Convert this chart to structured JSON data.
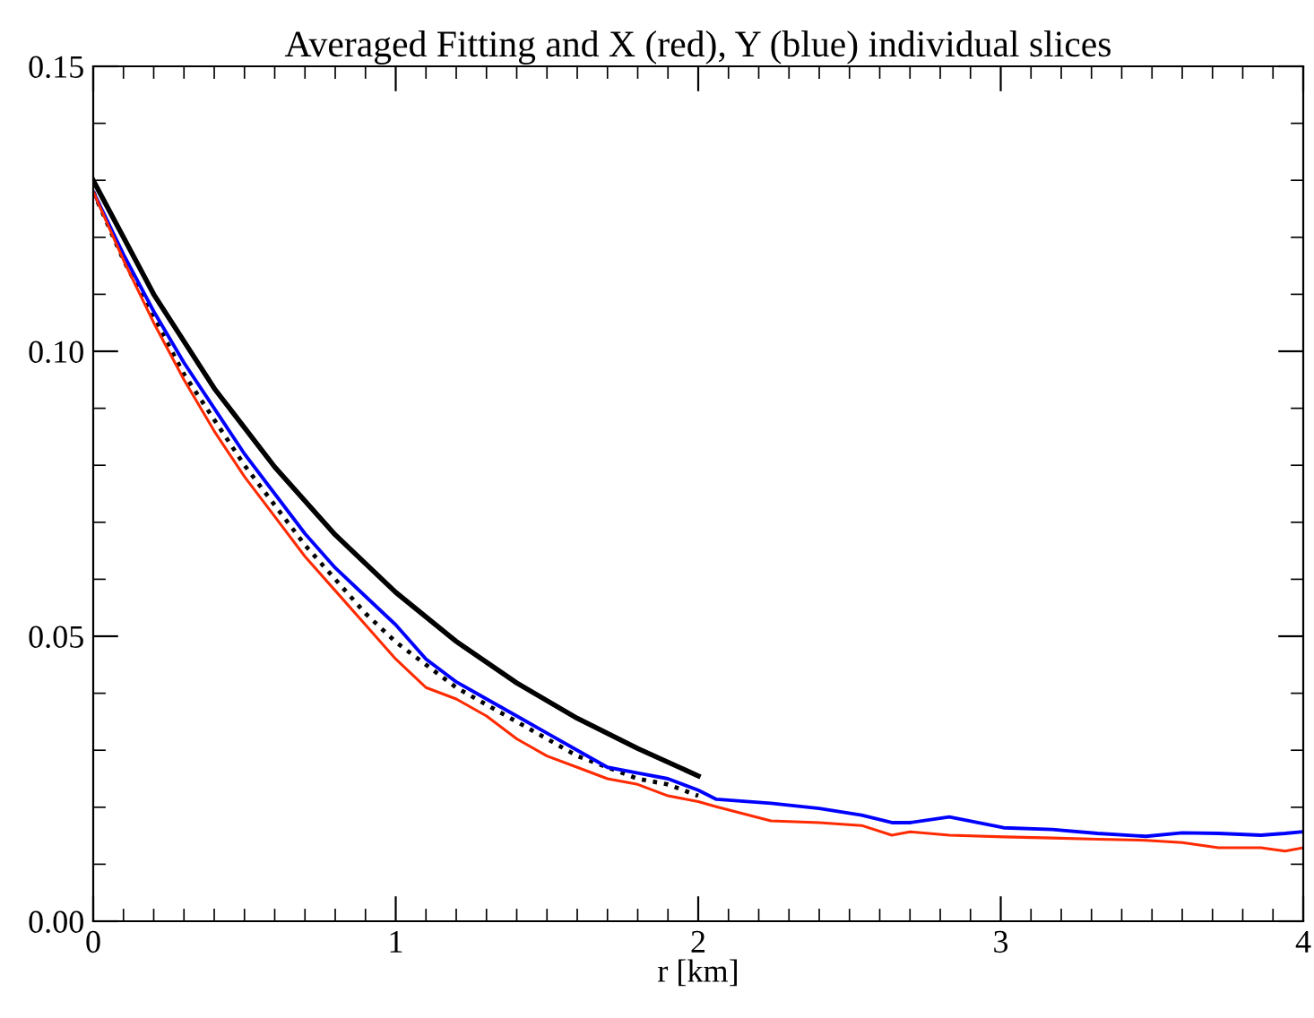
{
  "chart_data": {
    "type": "line",
    "title": "Averaged Fitting and X (red), Y (blue) individual slices",
    "xlabel": "r [km]",
    "xlim": [
      0,
      4
    ],
    "xticks": [
      0,
      1,
      2,
      3,
      4
    ],
    "ylim": [
      0,
      0.15
    ],
    "yticks": [
      {
        "value": 0,
        "label": "0.00"
      },
      {
        "value": 0.05,
        "label": "0.05"
      },
      {
        "value": 0.1,
        "label": "0.10"
      },
      {
        "value": 0.15,
        "label": "0.15"
      }
    ],
    "grid": false,
    "legend": false,
    "marker": "none",
    "series": [
      {
        "color": "#000000",
        "line_style": "solid",
        "x": [
          0,
          0.2,
          0.4,
          0.6,
          0.8,
          1.0,
          1.2,
          1.4,
          1.6,
          1.8,
          2.0
        ],
        "values": [
          0.13,
          0.11,
          0.0935,
          0.0797,
          0.0678,
          0.0577,
          0.0491,
          0.0418,
          0.0356,
          0.0303,
          0.0255
        ]
      },
      {
        "color": "#000000",
        "line_style": "dotted",
        "x": [
          0,
          0.1,
          0.2,
          0.3,
          0.4,
          0.5,
          0.6,
          0.7,
          0.8,
          0.9,
          1.0,
          1.1,
          1.2,
          1.3,
          1.4,
          1.5,
          1.6,
          1.7,
          1.8,
          1.9,
          2.0
        ],
        "values": [
          0.128,
          0.116,
          0.106,
          0.096,
          0.088,
          0.08,
          0.073,
          0.066,
          0.06,
          0.054,
          0.049,
          0.045,
          0.041,
          0.038,
          0.035,
          0.032,
          0.029,
          0.027,
          0.025,
          0.024,
          0.022
        ]
      },
      {
        "color": "#0000ff",
        "line_style": "solid",
        "x": [
          0,
          0.1,
          0.2,
          0.3,
          0.4,
          0.5,
          0.6,
          0.7,
          0.8,
          0.9,
          1.0,
          1.1,
          1.2,
          1.3,
          1.4,
          1.5,
          1.6,
          1.7,
          1.8,
          1.9,
          2.0,
          2.06,
          2.24,
          2.4,
          2.54,
          2.64,
          2.7,
          2.83,
          3.01,
          3.17,
          3.32,
          3.48,
          3.6,
          3.72,
          3.86,
          3.94,
          4.0
        ],
        "values": [
          0.128,
          0.117,
          0.107,
          0.098,
          0.09,
          0.082,
          0.075,
          0.068,
          0.062,
          0.057,
          0.052,
          0.046,
          0.042,
          0.039,
          0.036,
          0.033,
          0.03,
          0.027,
          0.026,
          0.025,
          0.023,
          0.0214,
          0.0207,
          0.0198,
          0.0186,
          0.0173,
          0.0173,
          0.0183,
          0.0164,
          0.0161,
          0.0154,
          0.0149,
          0.0155,
          0.0154,
          0.0151,
          0.0154,
          0.0157
        ]
      },
      {
        "color": "#ff2a00",
        "line_style": "solid",
        "x": [
          0,
          0.1,
          0.2,
          0.3,
          0.4,
          0.5,
          0.6,
          0.7,
          0.8,
          0.9,
          1.0,
          1.1,
          1.2,
          1.3,
          1.4,
          1.5,
          1.6,
          1.7,
          1.8,
          1.9,
          2.0,
          2.06,
          2.24,
          2.4,
          2.54,
          2.64,
          2.7,
          2.83,
          3.01,
          3.17,
          3.32,
          3.48,
          3.6,
          3.72,
          3.86,
          3.94,
          4.0
        ],
        "values": [
          0.128,
          0.116,
          0.105,
          0.095,
          0.086,
          0.078,
          0.071,
          0.064,
          0.058,
          0.052,
          0.046,
          0.041,
          0.039,
          0.036,
          0.032,
          0.029,
          0.027,
          0.025,
          0.024,
          0.022,
          0.021,
          0.0201,
          0.0176,
          0.0173,
          0.0168,
          0.0151,
          0.0157,
          0.0151,
          0.0148,
          0.0146,
          0.0144,
          0.0142,
          0.0138,
          0.0129,
          0.0129,
          0.0123,
          0.0129
        ]
      }
    ]
  }
}
